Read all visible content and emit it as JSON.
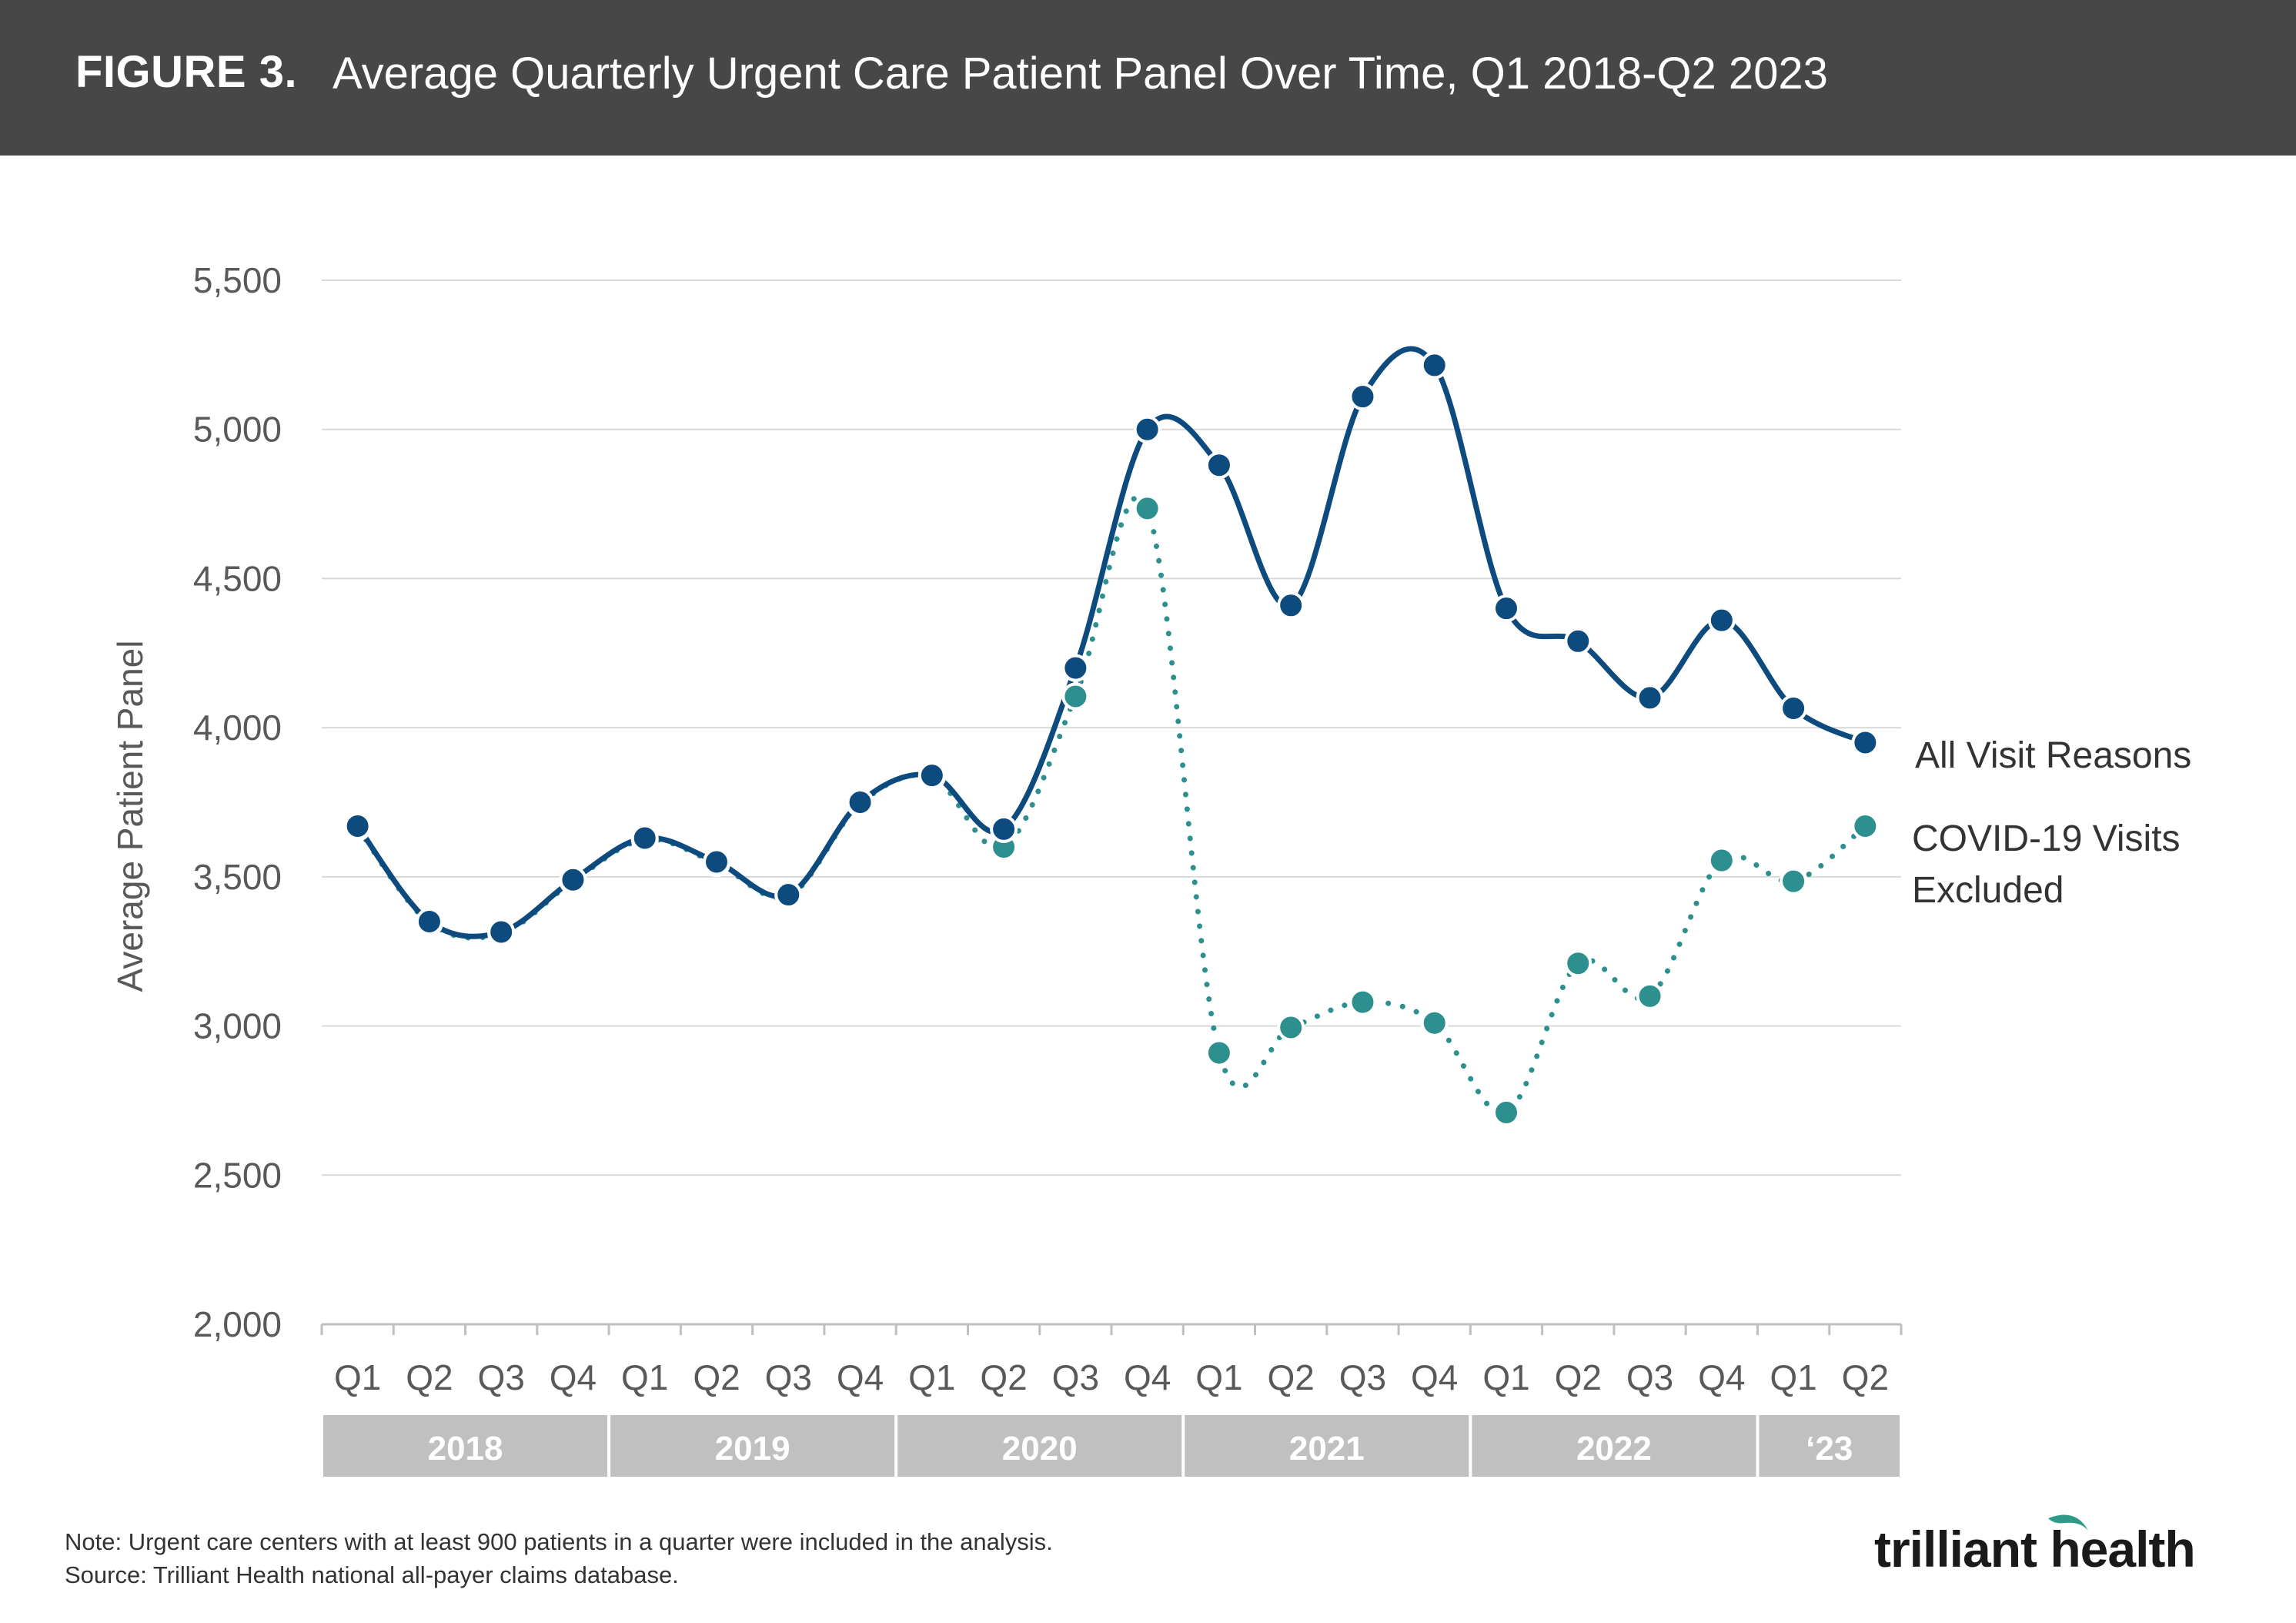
{
  "header": {
    "label": "FIGURE 3.",
    "title": "Average Quarterly Urgent Care Patient Panel Over Time, Q1 2018-Q2 2023"
  },
  "chart_data": {
    "type": "line",
    "ylabel": "Average Patient Panel",
    "ylim": [
      2000,
      5500
    ],
    "yticks": [
      2000,
      2500,
      3000,
      3500,
      4000,
      4500,
      5000,
      5500
    ],
    "ytick_labels": [
      "2,000",
      "2,500",
      "3,000",
      "3,500",
      "4,000",
      "4,500",
      "5,000",
      "5,500"
    ],
    "grid": true,
    "legend": "right-end labels",
    "categories": [
      "Q1",
      "Q2",
      "Q3",
      "Q4",
      "Q1",
      "Q2",
      "Q3",
      "Q4",
      "Q1",
      "Q2",
      "Q3",
      "Q4",
      "Q1",
      "Q2",
      "Q3",
      "Q4",
      "Q1",
      "Q2",
      "Q3",
      "Q4",
      "Q1",
      "Q2"
    ],
    "year_groups": [
      {
        "label": "2018",
        "quarters": 4
      },
      {
        "label": "2019",
        "quarters": 4
      },
      {
        "label": "2020",
        "quarters": 4
      },
      {
        "label": "2021",
        "quarters": 4
      },
      {
        "label": "2022",
        "quarters": 4
      },
      {
        "label": "‘23",
        "quarters": 2
      }
    ],
    "series": [
      {
        "name": "All Visit Reasons",
        "color": "#0d4a7e",
        "style": "solid",
        "values": [
          3670,
          3350,
          3315,
          3490,
          3630,
          3550,
          3440,
          3750,
          3840,
          3660,
          4200,
          5000,
          4880,
          4410,
          5110,
          5215,
          4400,
          4290,
          4100,
          4360,
          4065,
          3950
        ]
      },
      {
        "name": "COVID-19 Visits Excluded",
        "color": "#2e8f8f",
        "style": "dotted",
        "values": [
          3665,
          3345,
          3310,
          3485,
          3625,
          3545,
          3435,
          3745,
          3835,
          3600,
          4105,
          4735,
          2910,
          2995,
          3080,
          3010,
          2710,
          3210,
          3100,
          3555,
          3485,
          3670
        ]
      }
    ]
  },
  "footer": {
    "note": "Note: Urgent care centers with at least 900 patients in a quarter were included in the analysis.",
    "source": "Source: Trilliant Health national all-payer claims database."
  },
  "logo": {
    "text": "trilliant health",
    "accent_color": "#2e9a8a"
  }
}
